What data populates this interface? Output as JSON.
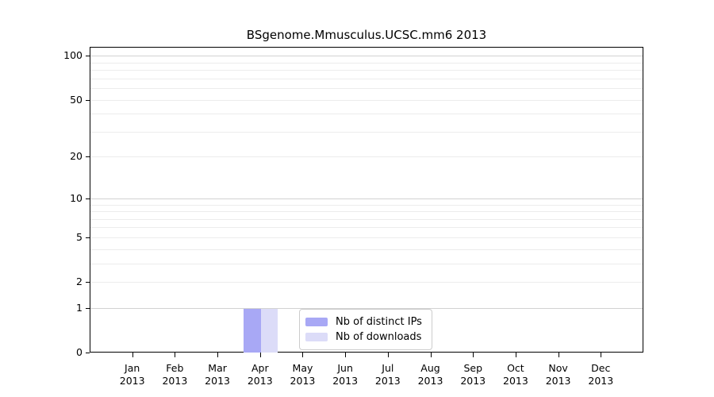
{
  "chart_data": {
    "type": "bar",
    "title": "BSgenome.Mmusculus.UCSC.mm6 2013",
    "categories": [
      "Jan 2013",
      "Feb 2013",
      "Mar 2013",
      "Apr 2013",
      "May 2013",
      "Jun 2013",
      "Jul 2013",
      "Aug 2013",
      "Sep 2013",
      "Oct 2013",
      "Nov 2013",
      "Dec 2013"
    ],
    "series": [
      {
        "name": "Nb of distinct IPs",
        "color": "#a8a8f5",
        "values": [
          0,
          0,
          0,
          1,
          0,
          0,
          0,
          0,
          0,
          0,
          0,
          0
        ]
      },
      {
        "name": "Nb of downloads",
        "color": "#dcdcf8",
        "values": [
          0,
          0,
          0,
          1,
          0,
          0,
          0,
          0,
          0,
          0,
          0,
          0
        ]
      }
    ],
    "xlabel": "",
    "ylabel": "",
    "yscale": "log1p",
    "yticks": [
      0,
      1,
      2,
      5,
      10,
      20,
      50,
      100
    ],
    "ylim": [
      0,
      115
    ],
    "grid": "on",
    "grid_major_values": [
      1,
      10,
      100
    ],
    "grid_minor_values": [
      2,
      3,
      4,
      5,
      6,
      7,
      8,
      9,
      20,
      30,
      40,
      50,
      60,
      70,
      80,
      90
    ],
    "legend_position": "inside-bottom-center",
    "colors": {
      "grid_major": "#d2d2d2",
      "grid_minor": "#ececec",
      "axis": "#000000",
      "background": "#ffffff"
    }
  }
}
